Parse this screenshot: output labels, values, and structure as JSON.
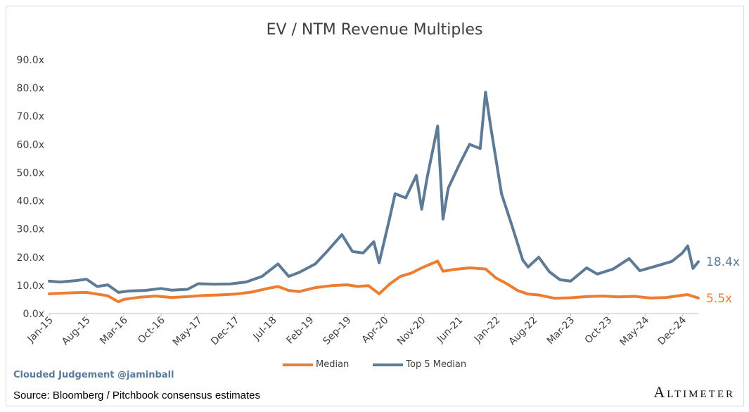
{
  "chart_data": {
    "type": "line",
    "title": "EV / NTM Revenue Multiples",
    "xlabel": "",
    "ylabel": "",
    "ylim": [
      0,
      90
    ],
    "y_ticks": [
      "0.0x",
      "10.0x",
      "20.0x",
      "30.0x",
      "40.0x",
      "50.0x",
      "60.0x",
      "70.0x",
      "80.0x",
      "90.0x"
    ],
    "x_ticks": [
      "Jan-15",
      "Aug-15",
      "Mar-16",
      "Oct-16",
      "May-17",
      "Dec-17",
      "Jul-18",
      "Feb-19",
      "Sep-19",
      "Apr-20",
      "Nov-20",
      "Jun-21",
      "Jan-22",
      "Aug-22",
      "Mar-23",
      "Oct-23",
      "May-24",
      "Dec-24"
    ],
    "xlim": [
      "2015-01",
      "2025-03"
    ],
    "grid": false,
    "legend_position": "bottom",
    "series": [
      {
        "name": "Median",
        "color": "#ed7d31",
        "end_label": "5.5x",
        "points": [
          [
            "2015-01",
            7.0
          ],
          [
            "2015-03",
            7.2
          ],
          [
            "2015-06",
            7.4
          ],
          [
            "2015-08",
            7.5
          ],
          [
            "2015-10",
            6.9
          ],
          [
            "2015-12",
            6.3
          ],
          [
            "2016-02",
            4.2
          ],
          [
            "2016-03",
            5.0
          ],
          [
            "2016-06",
            5.8
          ],
          [
            "2016-09",
            6.2
          ],
          [
            "2016-12",
            5.7
          ],
          [
            "2017-03",
            6.0
          ],
          [
            "2017-06",
            6.4
          ],
          [
            "2017-09",
            6.6
          ],
          [
            "2017-12",
            6.9
          ],
          [
            "2018-03",
            7.6
          ],
          [
            "2018-06",
            8.9
          ],
          [
            "2018-08",
            9.6
          ],
          [
            "2018-10",
            8.2
          ],
          [
            "2018-12",
            7.8
          ],
          [
            "2019-03",
            9.2
          ],
          [
            "2019-06",
            9.9
          ],
          [
            "2019-09",
            10.2
          ],
          [
            "2019-11",
            9.6
          ],
          [
            "2020-01",
            9.9
          ],
          [
            "2020-03",
            7.0
          ],
          [
            "2020-05",
            10.5
          ],
          [
            "2020-07",
            13.2
          ],
          [
            "2020-09",
            14.3
          ],
          [
            "2020-11",
            16.2
          ],
          [
            "2021-02",
            18.6
          ],
          [
            "2021-03",
            15.0
          ],
          [
            "2021-05",
            15.6
          ],
          [
            "2021-08",
            16.2
          ],
          [
            "2021-11",
            15.8
          ],
          [
            "2022-01",
            12.6
          ],
          [
            "2022-03",
            10.6
          ],
          [
            "2022-05",
            8.2
          ],
          [
            "2022-07",
            6.9
          ],
          [
            "2022-09",
            6.6
          ],
          [
            "2022-12",
            5.4
          ],
          [
            "2023-03",
            5.6
          ],
          [
            "2023-06",
            6.0
          ],
          [
            "2023-09",
            6.2
          ],
          [
            "2023-12",
            5.9
          ],
          [
            "2024-03",
            6.1
          ],
          [
            "2024-06",
            5.5
          ],
          [
            "2024-09",
            5.7
          ],
          [
            "2024-12",
            6.5
          ],
          [
            "2025-01",
            6.7
          ],
          [
            "2025-03",
            5.5
          ]
        ]
      },
      {
        "name": "Top 5 Median",
        "color": "#5d7b96",
        "end_label": "18.4x",
        "points": [
          [
            "2015-01",
            11.5
          ],
          [
            "2015-03",
            11.2
          ],
          [
            "2015-06",
            11.7
          ],
          [
            "2015-08",
            12.2
          ],
          [
            "2015-10",
            9.6
          ],
          [
            "2015-12",
            10.2
          ],
          [
            "2016-02",
            7.5
          ],
          [
            "2016-04",
            8.0
          ],
          [
            "2016-07",
            8.2
          ],
          [
            "2016-10",
            8.9
          ],
          [
            "2016-12",
            8.3
          ],
          [
            "2017-03",
            8.6
          ],
          [
            "2017-05",
            10.6
          ],
          [
            "2017-08",
            10.4
          ],
          [
            "2017-11",
            10.5
          ],
          [
            "2018-02",
            11.2
          ],
          [
            "2018-05",
            13.2
          ],
          [
            "2018-08",
            17.6
          ],
          [
            "2018-10",
            13.2
          ],
          [
            "2018-12",
            14.6
          ],
          [
            "2019-03",
            17.6
          ],
          [
            "2019-05",
            21.6
          ],
          [
            "2019-08",
            28.0
          ],
          [
            "2019-10",
            22.0
          ],
          [
            "2019-12",
            21.5
          ],
          [
            "2020-02",
            25.5
          ],
          [
            "2020-03",
            18.0
          ],
          [
            "2020-05",
            34.0
          ],
          [
            "2020-06",
            42.5
          ],
          [
            "2020-08",
            41.0
          ],
          [
            "2020-10",
            49.0
          ],
          [
            "2020-11",
            37.0
          ],
          [
            "2020-12",
            48.0
          ],
          [
            "2021-02",
            66.5
          ],
          [
            "2021-03",
            33.5
          ],
          [
            "2021-04",
            44.5
          ],
          [
            "2021-06",
            52.5
          ],
          [
            "2021-08",
            60.0
          ],
          [
            "2021-10",
            58.5
          ],
          [
            "2021-11",
            78.5
          ],
          [
            "2021-12",
            66.0
          ],
          [
            "2022-02",
            42.5
          ],
          [
            "2022-04",
            31.0
          ],
          [
            "2022-06",
            19.0
          ],
          [
            "2022-07",
            16.5
          ],
          [
            "2022-09",
            20.0
          ],
          [
            "2022-11",
            14.8
          ],
          [
            "2023-01",
            12.0
          ],
          [
            "2023-03",
            11.5
          ],
          [
            "2023-06",
            16.2
          ],
          [
            "2023-08",
            14.0
          ],
          [
            "2023-11",
            15.8
          ],
          [
            "2024-02",
            19.5
          ],
          [
            "2024-04",
            15.2
          ],
          [
            "2024-07",
            16.8
          ],
          [
            "2024-10",
            18.5
          ],
          [
            "2024-12",
            21.5
          ],
          [
            "2025-01",
            24.0
          ],
          [
            "2025-02",
            16.0
          ],
          [
            "2025-03",
            18.4
          ]
        ]
      }
    ]
  },
  "footer": {
    "credit": "Clouded Judgement @jaminball",
    "source": "Source: Bloomberg / Pitchbook consensus estimates",
    "brand": "Altimeter"
  }
}
